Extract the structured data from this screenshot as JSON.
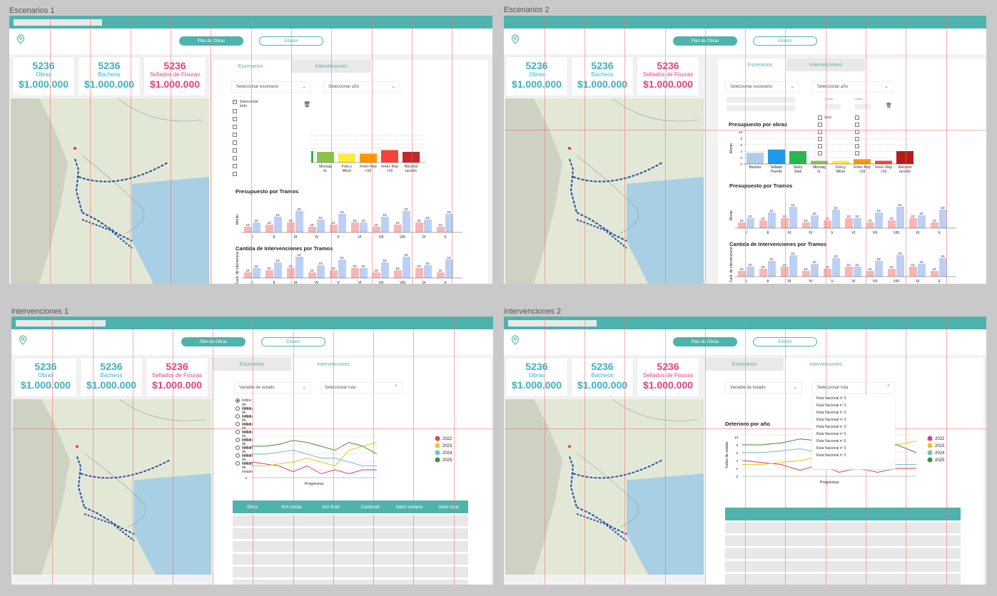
{
  "frames": [
    {
      "label": "Escenarios 1"
    },
    {
      "label": "Escenarios 2"
    },
    {
      "label": "intervenciones 1"
    },
    {
      "label": "intervenciones 2"
    }
  ],
  "nav": {
    "plan": "Plan de Obras",
    "edicion": "Edición",
    "plan_alt": "Plan du Obras"
  },
  "cards": [
    {
      "num": "5236",
      "label": "Obras",
      "value": "$1.000.000"
    },
    {
      "num": "5236",
      "label": "Bacheos",
      "value": "$1.000.000"
    },
    {
      "num": "5236",
      "label": "Sellados de Fisuras",
      "value": "$1.000.000"
    }
  ],
  "tabs": {
    "escenarios": "Escenarios",
    "intervenciones": "Intervenciones"
  },
  "esc": {
    "sel_escenario": "Seleccionar escenario",
    "sel_anio": "Seleccionar año",
    "select_all": "Seleccionar todo",
    "desde": "Desde",
    "hasta": "Hasta",
    "year": "2020",
    "pres_obras": "Presupuesto por obras",
    "pres_tramos": "Presupuesto por Tramos",
    "cant_tramos": "Cantida de Intervenciones por Tramos",
    "ylab_monto": "Monto",
    "ylab_cant": "Cant. de intervenciones"
  },
  "int": {
    "var_estado": "Variable de estado",
    "sel_ruta": "Seleccionar ruta",
    "indice": "Indice de estado",
    "ruta": "Ruta Nacional nº 3",
    "deterioro": "Deterioro por año",
    "progresiva": "Progresiva",
    "ylab": "Indice de estado"
  },
  "table_headers": [
    "Obra",
    "Km inicial",
    "Km final",
    "Cantidad",
    "Valor unitario",
    "Valor total"
  ],
  "colors": {
    "teal": "#4fb3ad",
    "pink": "#e4427d",
    "blue": "#3bb0c6"
  },
  "chart_data": [
    {
      "type": "bar",
      "title": "",
      "categories": [
        "Microag lo.",
        "Fres y Micro",
        "Fres+ Rep <10",
        "Fres+ Rep >10",
        "Reconst rucción"
      ],
      "values": [
        3,
        2.5,
        2.5,
        3.5,
        3
      ],
      "colors": [
        "#8bc34a",
        "#ffeb3b",
        "#ff9800",
        "#f44336",
        "#c62828"
      ]
    },
    {
      "type": "bar",
      "title": "Presupuesto por obras",
      "ylabel": "Monto",
      "ylim": [
        0,
        10
      ],
      "categories": [
        "Bacheo",
        "Sellado Puente",
        "Slurry Seal",
        "Microag lo.",
        "Fres y Micro",
        "Fres+ Rep <10",
        "Fres+ Rep >10",
        "Reconst rucción"
      ],
      "values": [
        3.5,
        4.5,
        4,
        1,
        1,
        1.5,
        1,
        4
      ],
      "colors": [
        "#b3cde8",
        "#1e9be8",
        "#2ab552",
        "#8bc34a",
        "#ffeb3b",
        "#ff9800",
        "#f44336",
        "#b71c1c"
      ]
    },
    {
      "type": "bar",
      "title": "Presupuesto por Tramos",
      "ylabel": "Monto",
      "categories": [
        "I",
        "II",
        "III",
        "IV",
        "V",
        "VI",
        "VII",
        "VIII",
        "IX",
        "X"
      ],
      "series": [
        {
          "values": [
            10,
            10,
            10,
            10,
            10,
            10,
            10,
            10,
            10,
            10
          ]
        },
        {
          "values": [
            10,
            10,
            10,
            10,
            10,
            10,
            10,
            10,
            10,
            10
          ]
        }
      ]
    },
    {
      "type": "bar",
      "title": "Cantida de Intervenciones por Tramos",
      "ylabel": "Cant. de intervenciones",
      "categories": [
        "I",
        "II",
        "III",
        "IV",
        "V",
        "VI",
        "VII",
        "VIII",
        "IX",
        "X"
      ],
      "series": [
        {
          "values": [
            10,
            10,
            10,
            10,
            10,
            10,
            10,
            10,
            10,
            10
          ]
        },
        {
          "values": [
            10,
            10,
            10,
            10,
            10,
            10,
            10,
            10,
            10,
            10
          ]
        }
      ]
    },
    {
      "type": "line",
      "title": "Deterioro por año",
      "xlabel": "Progresiva",
      "ylabel": "Indice de estado",
      "ylim": [
        0,
        10
      ],
      "x": [
        1,
        2,
        3,
        4,
        5,
        6,
        7,
        8,
        9,
        10
      ],
      "series": [
        {
          "name": "2022",
          "values": [
            4,
            3.5,
            3,
            1.5,
            3,
            1,
            2,
            1,
            2,
            2
          ]
        },
        {
          "name": "2023",
          "values": [
            3,
            3,
            3.5,
            4,
            5,
            4,
            3,
            7,
            8,
            9
          ]
        },
        {
          "name": "2024",
          "values": [
            6,
            6,
            6.5,
            7,
            6,
            5,
            5,
            4,
            3,
            3
          ]
        },
        {
          "name": "2025",
          "values": [
            8,
            8,
            8.5,
            9.5,
            9,
            8,
            7,
            9,
            8,
            6
          ]
        }
      ],
      "colors": [
        "#d9426b",
        "#f2c521",
        "#6fbfd6",
        "#4a8a3a"
      ]
    }
  ]
}
